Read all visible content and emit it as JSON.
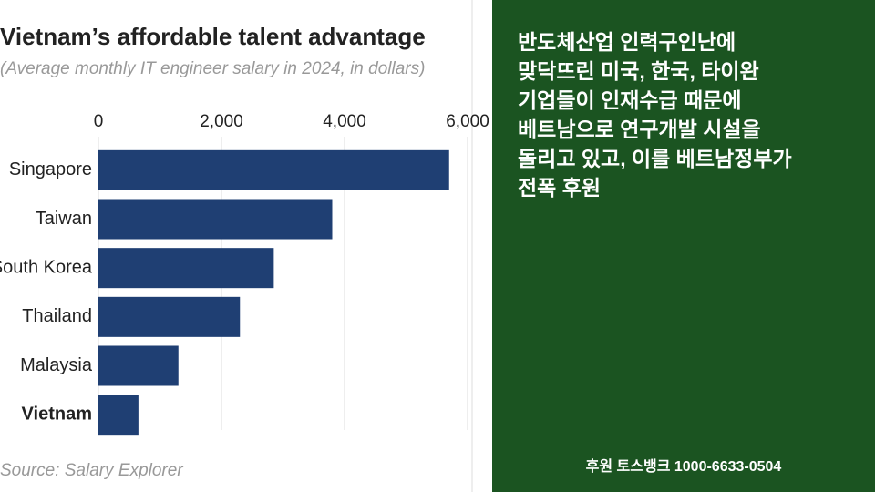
{
  "chart_data": {
    "type": "hbar",
    "title": "Vietnam’s affordable talent advantage",
    "subtitle": "(Average monthly IT engineer salary in 2024, in dollars)",
    "source": "Source: Salary Explorer",
    "categories": [
      "Singapore",
      "Taiwan",
      "South Korea",
      "Thailand",
      "Malaysia",
      "Vietnam"
    ],
    "values": [
      5700,
      3800,
      2850,
      2300,
      1300,
      650
    ],
    "color": "#1f3f73",
    "emphasized_category": "Vietnam",
    "xlim": [
      0,
      6000
    ],
    "xticks": [
      0,
      {
        "value": 2000,
        "label": "2,000"
      },
      {
        "value": 4000,
        "label": "4,000"
      },
      {
        "value": 6000,
        "label": "6,000"
      }
    ],
    "grid": true
  },
  "side_panel": {
    "lines": [
      "반도체산업 인력구인난에",
      "맞닥뜨린 미국, 한국, 타이완",
      "기업들이 인재수급 때문에",
      "베트남으로 연구개발 시설을",
      "돌리고 있고, 이를 베트남정부가",
      "전폭 후원"
    ],
    "footer": "후원 토스뱅크 1000-6633-0504"
  }
}
